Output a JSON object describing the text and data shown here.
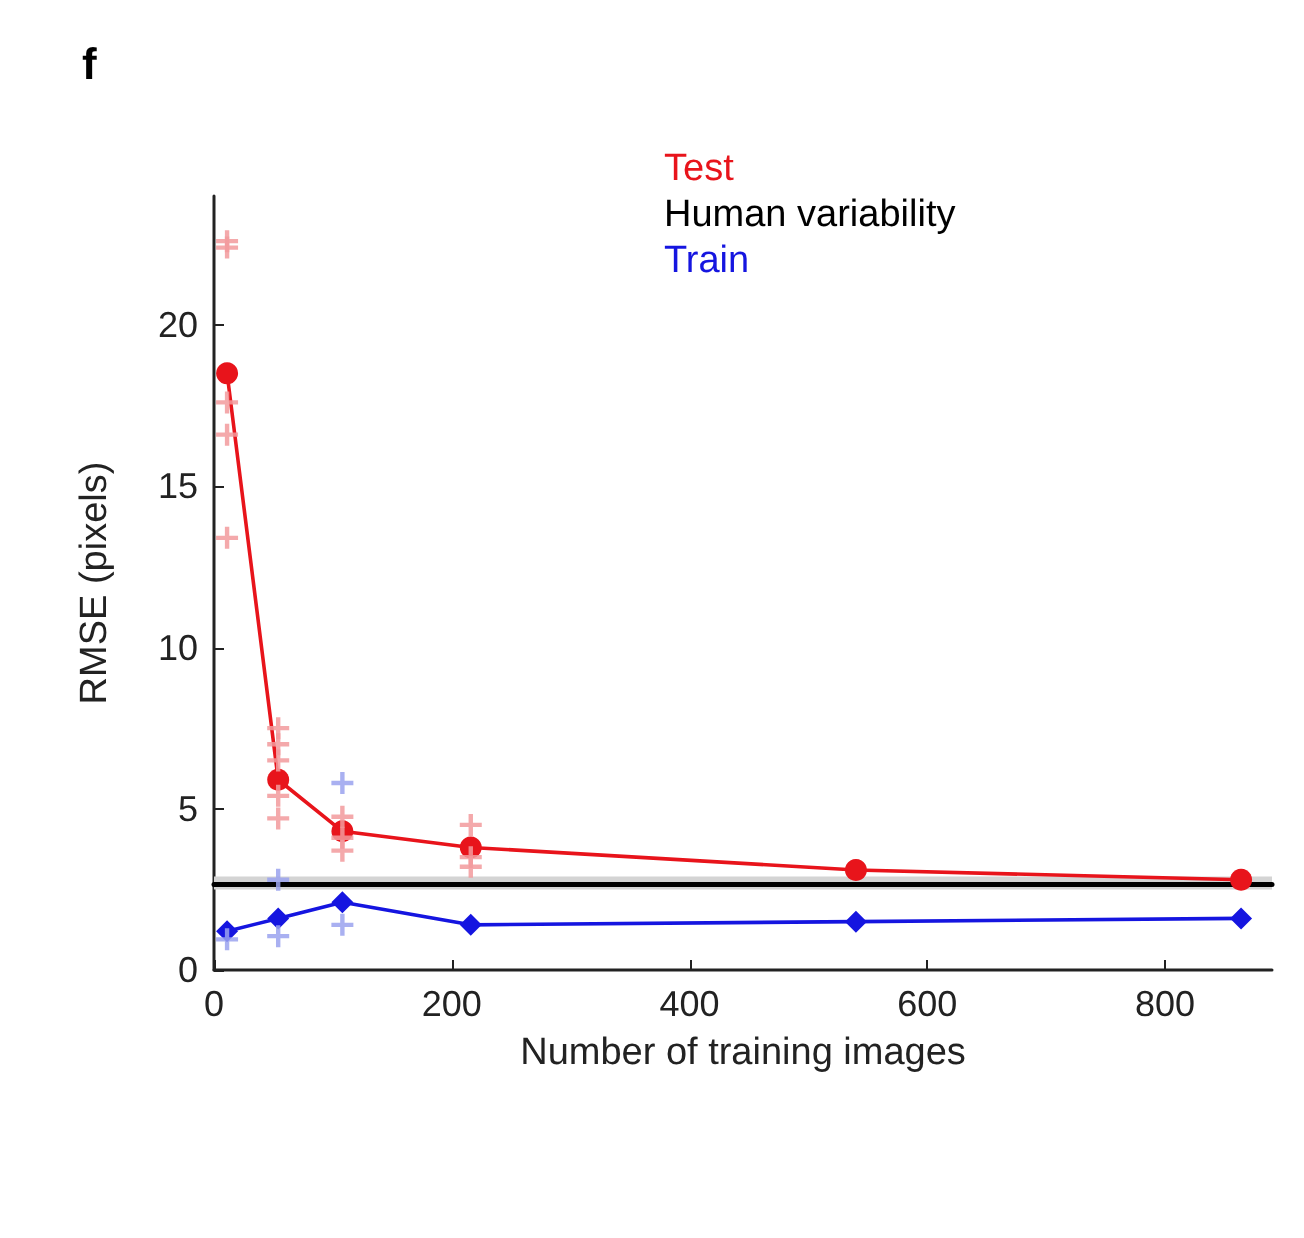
{
  "chart_data": {
    "type": "line",
    "title": "f",
    "xlabel": "Number of training images",
    "ylabel": "RMSE (pixels)",
    "xlim": [
      0,
      890
    ],
    "xticks": [
      0,
      200,
      400,
      600,
      800
    ],
    "ylim": [
      0,
      24
    ],
    "yticks": [
      0,
      5,
      10,
      15,
      20
    ],
    "grid": false,
    "legend": "top right",
    "series": [
      {
        "name": "Test",
        "color": "#e8141b",
        "marker": "circle",
        "x": [
          11,
          54,
          108,
          216,
          540,
          864
        ],
        "values": [
          18.5,
          5.9,
          4.3,
          3.8,
          3.1,
          2.8
        ]
      },
      {
        "name": "Human variability",
        "color": "#000000",
        "marker": "none",
        "x": [
          0,
          890
        ],
        "values": [
          2.65,
          2.65
        ],
        "lower": [
          2.5,
          2.5
        ],
        "upper": [
          2.9,
          2.9
        ]
      },
      {
        "name": "Train",
        "color": "#1515e0",
        "marker": "diamond",
        "x": [
          11,
          54,
          108,
          216,
          540,
          864
        ],
        "values": [
          1.2,
          1.6,
          2.1,
          1.4,
          1.5,
          1.6
        ]
      },
      {
        "type": "scatter",
        "color": "#f29a9c",
        "marker": "cross",
        "x": [
          11,
          11,
          11,
          11,
          11,
          54,
          54,
          54,
          54,
          54,
          108,
          108,
          108,
          216,
          216,
          216
        ],
        "values": [
          22.6,
          22.4,
          17.6,
          16.6,
          13.4,
          7.5,
          7.0,
          6.5,
          5.4,
          4.7,
          4.75,
          4.1,
          3.7,
          4.5,
          3.5,
          3.2
        ]
      },
      {
        "type": "scatter",
        "color": "#9aa2ee",
        "marker": "cross",
        "x": [
          11,
          54,
          54,
          108,
          108
        ],
        "values": [
          0.95,
          2.8,
          1.05,
          5.8,
          1.4
        ]
      }
    ]
  }
}
